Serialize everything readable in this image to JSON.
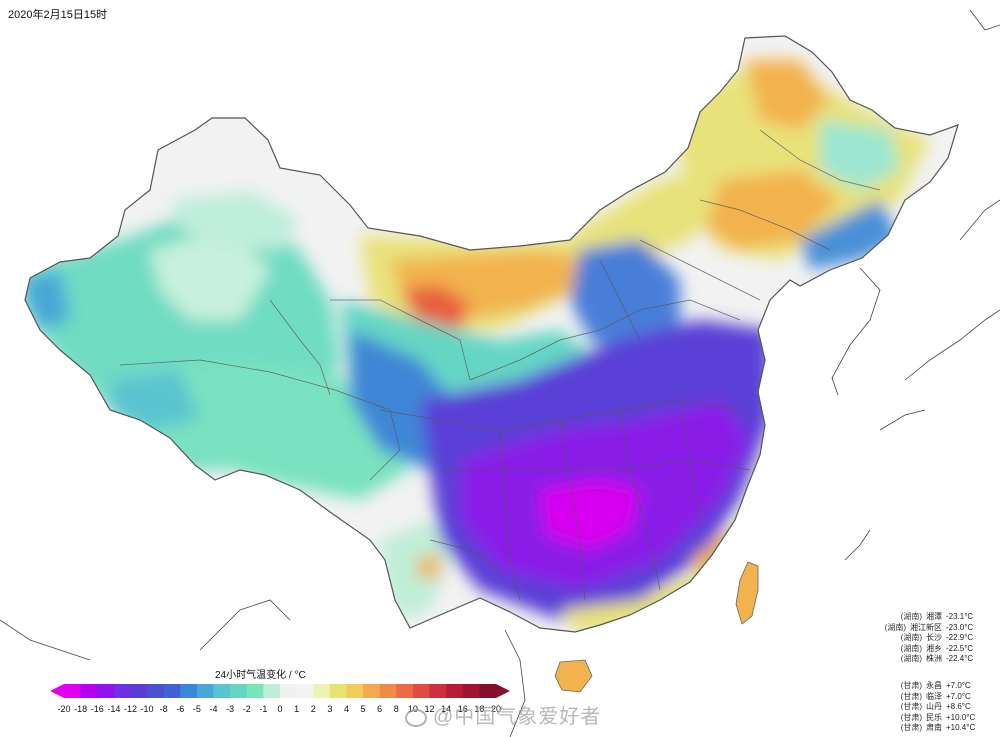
{
  "timestamp": "2020年2月15日15时",
  "legend": {
    "title": "24小时气温变化 / °C",
    "ticks": [
      "-20",
      "-18",
      "-16",
      "-14",
      "-12",
      "-10",
      "-8",
      "-6",
      "-5",
      "-4",
      "-3",
      "-2",
      "-1",
      "0",
      "1",
      "2",
      "3",
      "4",
      "5",
      "6",
      "8",
      "10",
      "12",
      "14",
      "16",
      "18",
      "20"
    ],
    "colors": [
      "#e000f0",
      "#b400f0",
      "#9012ee",
      "#7030e4",
      "#5a3fd6",
      "#4a52d0",
      "#4062d6",
      "#3a86d8",
      "#4aa6d8",
      "#5ac4d0",
      "#66d6c4",
      "#7ae4ba",
      "#bdeed8",
      "#f0f0f0",
      "#f4f4f4",
      "#eef2b4",
      "#e6e470",
      "#f2cc5a",
      "#f5a850",
      "#f08a48",
      "#ec6a46",
      "#e24a44",
      "#d0303c",
      "#b81c34",
      "#a01430",
      "#84102c"
    ],
    "colors_note": "colour ramp from -20 (magenta) to +20 (dark red)"
  },
  "watermark": "@中国气象爱好者",
  "stations_cold": [
    {
      "prov": "(湖南)",
      "name": "湘潭",
      "value": "-23.1°C"
    },
    {
      "prov": "(湖南)",
      "name": "湘江新区",
      "value": "-23.0°C"
    },
    {
      "prov": "(湖南)",
      "name": "长沙",
      "value": "-22.9°C"
    },
    {
      "prov": "(湖南)",
      "name": "湘乡",
      "value": "-22.5°C"
    },
    {
      "prov": "(湖南)",
      "name": "株洲",
      "value": "-22.4°C"
    }
  ],
  "stations_warm": [
    {
      "prov": "(甘肃)",
      "name": "永昌",
      "value": "+7.0°C"
    },
    {
      "prov": "(甘肃)",
      "name": "临泽",
      "value": "+7.0°C"
    },
    {
      "prov": "(甘肃)",
      "name": "山丹",
      "value": "+8.6°C"
    },
    {
      "prov": "(甘肃)",
      "name": "民乐",
      "value": "+10.0°C"
    },
    {
      "prov": "(甘肃)",
      "name": "肃南",
      "value": "+10.4°C"
    }
  ],
  "map_colors": {
    "neutral": "#f2f2f2",
    "teal": "#6fdcc2",
    "teal_light": "#a8ecd6",
    "blue": "#3f86d6",
    "indigo": "#5a3fd6",
    "violet": "#8a1ee8",
    "magenta": "#d800f0",
    "yellow": "#e8e27a",
    "orange": "#f2b24e",
    "red": "#e8603e",
    "sea": "#ffffff",
    "border": "#555555"
  }
}
